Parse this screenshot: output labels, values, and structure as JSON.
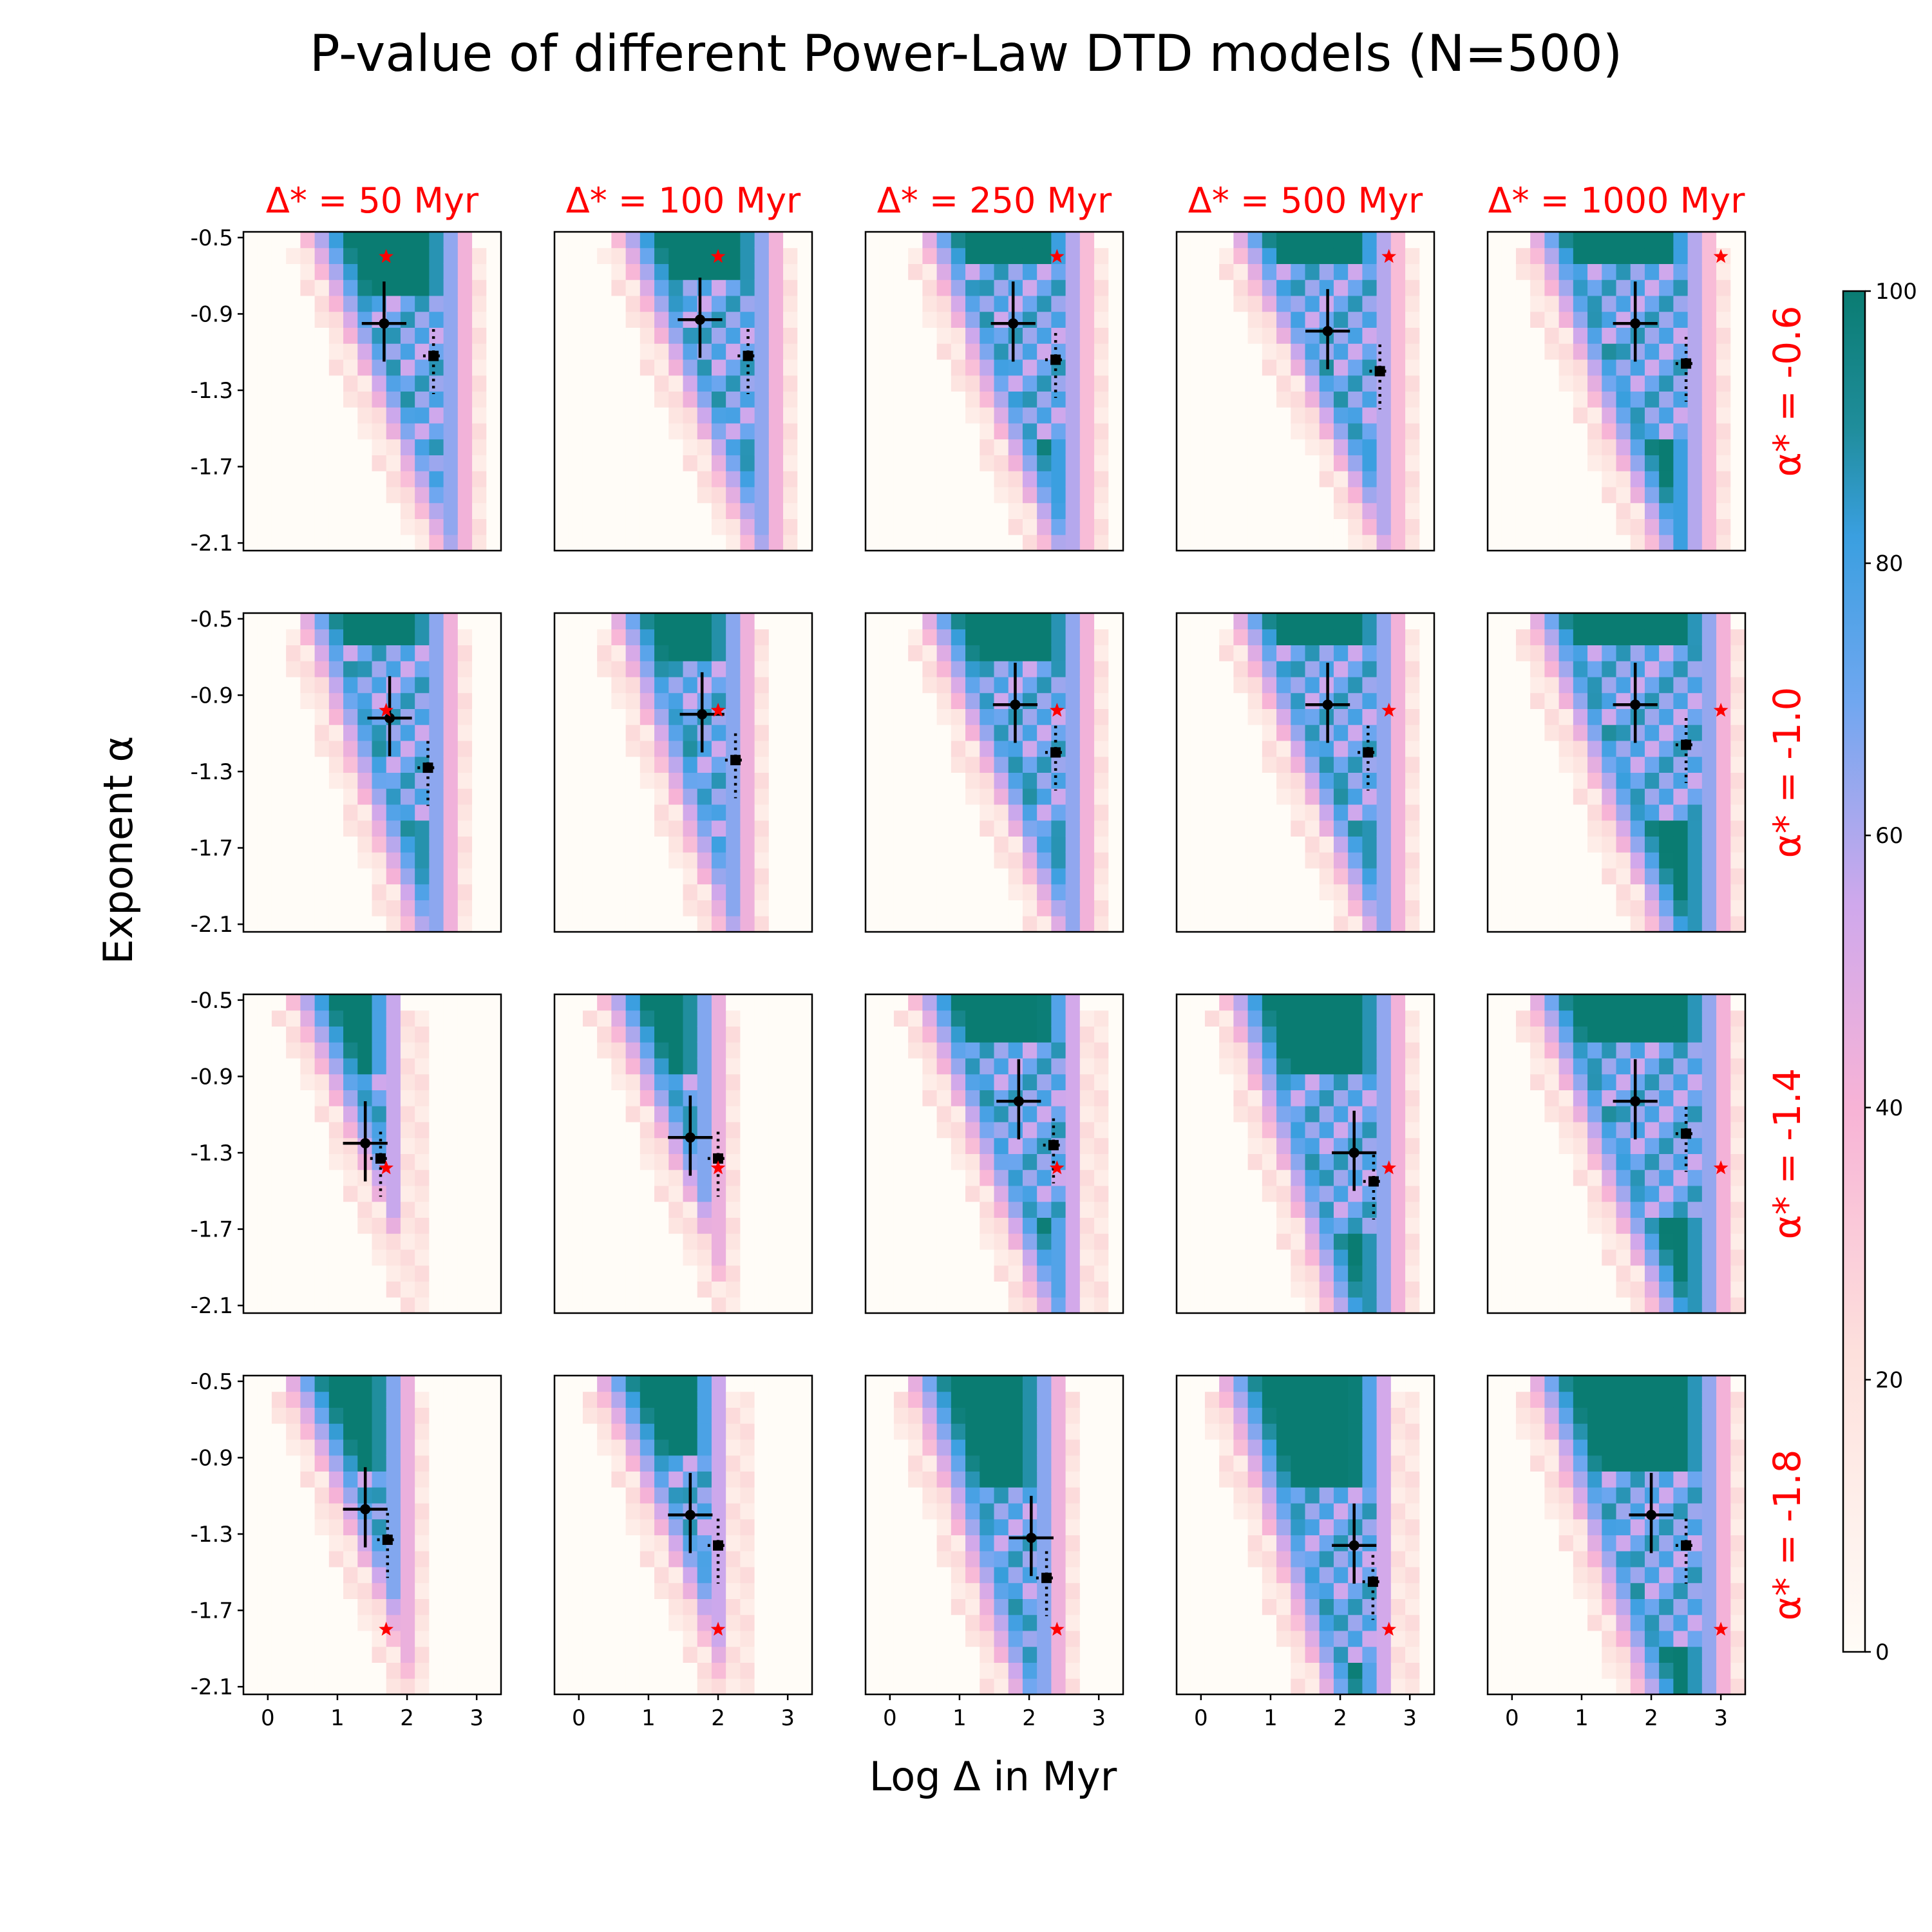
{
  "chart_data": {
    "type": "heatmap",
    "title": "P-value of different Power-Law DTD models (N=500)",
    "xlabel": "Log Δ in Myr",
    "ylabel": "Exponent α",
    "xlim": [
      -0.35,
      3.35
    ],
    "ylim": [
      -2.14,
      -0.47
    ],
    "x_ticks": [
      0,
      1,
      2,
      3
    ],
    "x_tick_labels": [
      "0",
      "1",
      "2",
      "3"
    ],
    "y_ticks": [
      -0.5,
      -0.9,
      -1.3,
      -1.7,
      -2.1
    ],
    "y_tick_labels": [
      "-0.5",
      "-0.9",
      "-1.3",
      "-1.7",
      "-2.1"
    ],
    "column_titles": [
      "Δ* = 50 Myr",
      "Δ* = 100 Myr",
      "Δ* = 250 Myr",
      "Δ* = 500 Myr",
      "Δ* = 1000 Myr"
    ],
    "row_titles": [
      "α* = -0.6",
      "α* = -1.0",
      "α* = -1.4",
      "α* = -1.8"
    ],
    "true_log_delta": [
      1.7,
      2.0,
      2.4,
      2.7,
      3.0
    ],
    "true_alpha": [
      -0.6,
      -1.0,
      -1.4,
      -1.8
    ],
    "colorbar": {
      "label_ticks": [
        0,
        20,
        40,
        60,
        80,
        100
      ],
      "tick_labels": [
        "0",
        "20",
        "40",
        "60",
        "80",
        "100"
      ],
      "range": [
        0,
        100
      ],
      "stops": [
        {
          "v": 0,
          "c": "#fffcf7"
        },
        {
          "v": 22,
          "c": "#fde0dc"
        },
        {
          "v": 40,
          "c": "#f7b3d6"
        },
        {
          "v": 55,
          "c": "#cfa8ec"
        },
        {
          "v": 70,
          "c": "#6fa7f0"
        },
        {
          "v": 82,
          "c": "#3a9fe0"
        },
        {
          "v": 90,
          "c": "#1f8d9b"
        },
        {
          "v": 100,
          "c": "#0a7c72"
        }
      ]
    },
    "panels": [
      {
        "row": 0,
        "col": 0,
        "star": [
          1.7,
          -0.6
        ],
        "fit": [
          1.67,
          -0.95,
          0.32,
          0.22,
          0.2
        ],
        "alt": [
          2.38,
          -1.12,
          0.15,
          0.14,
          0.08
        ],
        "band": [
          0.6,
          2.4,
          -1.25,
          2.9
        ],
        "wide": false
      },
      {
        "row": 0,
        "col": 1,
        "star": [
          2.0,
          -0.6
        ],
        "fit": [
          1.74,
          -0.93,
          0.32,
          0.22,
          0.2
        ],
        "alt": [
          2.43,
          -1.12,
          0.15,
          0.14,
          0.08
        ],
        "band": [
          0.6,
          2.4,
          -1.15,
          2.9
        ],
        "wide": false
      },
      {
        "row": 0,
        "col": 2,
        "star": [
          2.4,
          -0.6
        ],
        "fit": [
          1.77,
          -0.95,
          0.32,
          0.22,
          0.2
        ],
        "alt": [
          2.38,
          -1.14,
          0.15,
          0.14,
          0.08
        ],
        "band": [
          0.5,
          2.2,
          -1.1,
          2.85
        ],
        "wide": false
      },
      {
        "row": 0,
        "col": 3,
        "star": [
          2.7,
          -0.6
        ],
        "fit": [
          1.82,
          -0.99,
          0.32,
          0.22,
          0.2
        ],
        "alt": [
          2.57,
          -1.2,
          0.15,
          0.14,
          0.08
        ],
        "band": [
          0.5,
          2.5,
          -1.1,
          2.85
        ],
        "wide": false
      },
      {
        "row": 0,
        "col": 4,
        "star": [
          3.0,
          -0.6
        ],
        "fit": [
          1.77,
          -0.95,
          0.32,
          0.22,
          0.2
        ],
        "alt": [
          2.5,
          -1.16,
          0.15,
          0.14,
          0.08
        ],
        "band": [
          0.3,
          2.0,
          -1.1,
          2.85
        ],
        "wide": false
      },
      {
        "row": 1,
        "col": 0,
        "star": [
          1.7,
          -0.98
        ],
        "fit": [
          1.75,
          -1.02,
          0.32,
          0.22,
          0.2
        ],
        "alt": [
          2.3,
          -1.28,
          0.15,
          0.14,
          0.08
        ],
        "band": [
          0.5,
          2.0,
          -1.1,
          2.7
        ],
        "wide": false
      },
      {
        "row": 1,
        "col": 1,
        "star": [
          2.0,
          -0.98
        ],
        "fit": [
          1.77,
          -1.0,
          0.32,
          0.22,
          0.2
        ],
        "alt": [
          2.25,
          -1.24,
          0.15,
          0.14,
          0.08
        ],
        "band": [
          0.5,
          2.0,
          -1.2,
          2.5
        ],
        "wide": false
      },
      {
        "row": 1,
        "col": 2,
        "star": [
          2.4,
          -0.98
        ],
        "fit": [
          1.8,
          -0.95,
          0.32,
          0.22,
          0.2
        ],
        "alt": [
          2.38,
          -1.2,
          0.15,
          0.14,
          0.08
        ],
        "band": [
          0.5,
          2.3,
          -1.2,
          2.9
        ],
        "wide": false
      },
      {
        "row": 1,
        "col": 3,
        "star": [
          2.7,
          -0.98
        ],
        "fit": [
          1.82,
          -0.95,
          0.32,
          0.22,
          0.2
        ],
        "alt": [
          2.4,
          -1.2,
          0.15,
          0.14,
          0.08
        ],
        "band": [
          0.5,
          2.3,
          -1.1,
          2.9
        ],
        "wide": false
      },
      {
        "row": 1,
        "col": 4,
        "star": [
          3.0,
          -0.98
        ],
        "fit": [
          1.77,
          -0.95,
          0.32,
          0.22,
          0.2
        ],
        "alt": [
          2.5,
          -1.16,
          0.15,
          0.14,
          0.08
        ],
        "band": [
          0.3,
          2.0,
          -1.1,
          3.1
        ],
        "wide": false
      },
      {
        "row": 2,
        "col": 0,
        "star": [
          1.7,
          -1.38
        ],
        "fit": [
          1.4,
          -1.25,
          0.32,
          0.22,
          0.2
        ],
        "alt": [
          1.62,
          -1.33,
          0.15,
          0.14,
          0.08
        ],
        "band": [
          0.4,
          2.2,
          -1.3,
          2.0
        ],
        "wide": false
      },
      {
        "row": 2,
        "col": 1,
        "star": [
          2.0,
          -1.38
        ],
        "fit": [
          1.6,
          -1.22,
          0.32,
          0.22,
          0.2
        ],
        "alt": [
          2.0,
          -1.33,
          0.15,
          0.14,
          0.08
        ],
        "band": [
          0.4,
          2.2,
          -1.3,
          2.1
        ],
        "wide": false
      },
      {
        "row": 2,
        "col": 2,
        "star": [
          2.4,
          -1.38
        ],
        "fit": [
          1.85,
          -1.03,
          0.32,
          0.22,
          0.2
        ],
        "alt": [
          2.35,
          -1.26,
          0.15,
          0.14,
          0.08
        ],
        "band": [
          0.4,
          2.1,
          -1.2,
          2.8
        ],
        "wide": false
      },
      {
        "row": 2,
        "col": 3,
        "star": [
          2.7,
          -1.38
        ],
        "fit": [
          2.2,
          -1.3,
          0.32,
          0.22,
          0.2
        ],
        "alt": [
          2.48,
          -1.45,
          0.15,
          0.14,
          0.08
        ],
        "band": [
          0.4,
          1.8,
          -1.3,
          2.9
        ],
        "wide": false
      },
      {
        "row": 2,
        "col": 4,
        "star": [
          3.0,
          -1.38
        ],
        "fit": [
          1.77,
          -1.03,
          0.32,
          0.22,
          0.2
        ],
        "alt": [
          2.5,
          -1.2,
          0.15,
          0.14,
          0.08
        ],
        "band": [
          0.3,
          2.0,
          -1.2,
          3.1
        ],
        "wide": false
      },
      {
        "row": 3,
        "col": 0,
        "star": [
          1.7,
          -1.8
        ],
        "fit": [
          1.4,
          -1.17,
          0.32,
          0.22,
          0.2
        ],
        "alt": [
          1.72,
          -1.33,
          0.15,
          0.14,
          0.08
        ],
        "band": [
          0.3,
          2.1,
          -1.4,
          2.1
        ],
        "wide": false
      },
      {
        "row": 3,
        "col": 1,
        "star": [
          2.0,
          -1.8
        ],
        "fit": [
          1.6,
          -1.2,
          0.32,
          0.22,
          0.2
        ],
        "alt": [
          2.0,
          -1.36,
          0.15,
          0.14,
          0.08
        ],
        "band": [
          0.3,
          2.1,
          -1.35,
          2.2
        ],
        "wide": false
      },
      {
        "row": 3,
        "col": 2,
        "star": [
          2.4,
          -1.8
        ],
        "fit": [
          2.03,
          -1.32,
          0.32,
          0.22,
          0.2
        ],
        "alt": [
          2.25,
          -1.53,
          0.15,
          0.14,
          0.08
        ],
        "band": [
          0.3,
          1.7,
          -1.5,
          2.5
        ],
        "wide": false
      },
      {
        "row": 3,
        "col": 3,
        "star": [
          2.7,
          -1.8
        ],
        "fit": [
          2.2,
          -1.36,
          0.32,
          0.22,
          0.2
        ],
        "alt": [
          2.47,
          -1.55,
          0.15,
          0.14,
          0.08
        ],
        "band": [
          0.3,
          1.7,
          -1.5,
          2.8
        ],
        "wide": false
      },
      {
        "row": 3,
        "col": 4,
        "star": [
          3.0,
          -1.8
        ],
        "fit": [
          2.0,
          -1.2,
          0.32,
          0.22,
          0.2
        ],
        "alt": [
          2.5,
          -1.36,
          0.15,
          0.14,
          0.08
        ],
        "band": [
          0.3,
          1.8,
          -1.45,
          3.1
        ],
        "wide": false
      }
    ]
  }
}
